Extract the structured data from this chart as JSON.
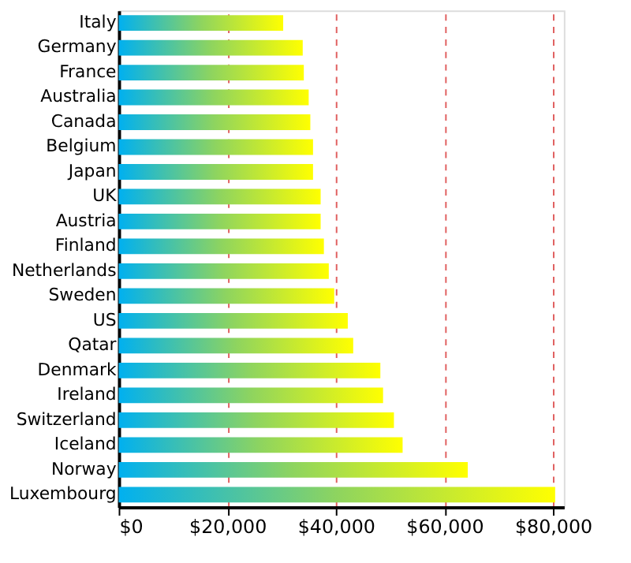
{
  "chart_data": {
    "type": "bar",
    "orientation": "horizontal",
    "categories": [
      "Italy",
      "Germany",
      "France",
      "Australia",
      "Canada",
      "Belgium",
      "Japan",
      "UK",
      "Austria",
      "Finland",
      "Netherlands",
      "Sweden",
      "US",
      "Qatar",
      "Denmark",
      "Ireland",
      "Switzerland",
      "Iceland",
      "Norway",
      "Luxembourg"
    ],
    "values": [
      30300,
      33900,
      34100,
      35000,
      35300,
      35800,
      35800,
      37200,
      37200,
      37800,
      38700,
      39700,
      42200,
      43200,
      48200,
      48700,
      50700,
      52300,
      64300,
      80400
    ],
    "color": "#8ed45f",
    "xlim": [
      0,
      82000
    ],
    "xticks": [
      {
        "value": 0,
        "label": "$0"
      },
      {
        "value": 20000,
        "label": "$20,000"
      },
      {
        "value": 40000,
        "label": "$40,000"
      },
      {
        "value": 60000,
        "label": "$60,000"
      },
      {
        "value": 80000,
        "label": "$80,000"
      }
    ],
    "grid": "x"
  }
}
